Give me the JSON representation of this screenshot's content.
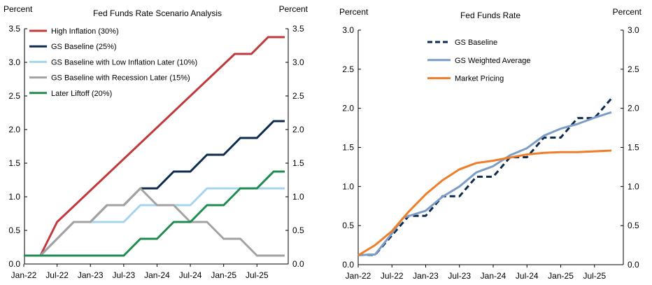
{
  "chart_data": [
    {
      "type": "line",
      "title": "Fed Funds Rate Scenario Analysis",
      "ylabel_left": "Percent",
      "ylabel_right": "Percent",
      "ylim": [
        0,
        3.5
      ],
      "yticks": [
        "0.0",
        "0.5",
        "1.0",
        "1.5",
        "2.0",
        "2.5",
        "3.0",
        "3.5"
      ],
      "xticks": [
        "Jan-22",
        "Jul-22",
        "Jan-23",
        "Jul-23",
        "Jan-24",
        "Jul-24",
        "Jan-25",
        "Jul-25"
      ],
      "x_month_range": [
        0,
        47
      ],
      "series": [
        {
          "name": "High Inflation (30%)",
          "color": "#c0393b",
          "dash": "solid",
          "points": [
            [
              0,
              0.125
            ],
            [
              3,
              0.125
            ],
            [
              6,
              0.625
            ],
            [
              38,
              3.125
            ],
            [
              41,
              3.125
            ],
            [
              44,
              3.375
            ],
            [
              47,
              3.375
            ]
          ]
        },
        {
          "name": "GS Baseline (25%)",
          "color": "#0d2b4e",
          "dash": "solid",
          "points": [
            [
              0,
              0.125
            ],
            [
              3,
              0.125
            ],
            [
              6,
              0.375
            ],
            [
              9,
              0.625
            ],
            [
              12,
              0.625
            ],
            [
              15,
              0.875
            ],
            [
              18,
              0.875
            ],
            [
              21,
              1.125
            ],
            [
              24,
              1.125
            ],
            [
              27,
              1.375
            ],
            [
              30,
              1.375
            ],
            [
              33,
              1.625
            ],
            [
              36,
              1.625
            ],
            [
              39,
              1.875
            ],
            [
              42,
              1.875
            ],
            [
              45,
              2.125
            ],
            [
              47,
              2.125
            ]
          ]
        },
        {
          "name": "GS Baseline with Low Inflation Later (10%)",
          "color": "#a6d4ee",
          "dash": "solid",
          "points": [
            [
              0,
              0.125
            ],
            [
              3,
              0.125
            ],
            [
              6,
              0.375
            ],
            [
              9,
              0.625
            ],
            [
              18,
              0.625
            ],
            [
              21,
              0.875
            ],
            [
              30,
              0.875
            ],
            [
              33,
              1.125
            ],
            [
              47,
              1.125
            ]
          ]
        },
        {
          "name": "GS Baseline with Recession Later (15%)",
          "color": "#a2a2a2",
          "dash": "solid",
          "points": [
            [
              0,
              0.125
            ],
            [
              3,
              0.125
            ],
            [
              6,
              0.375
            ],
            [
              9,
              0.625
            ],
            [
              12,
              0.625
            ],
            [
              15,
              0.875
            ],
            [
              18,
              0.875
            ],
            [
              21,
              1.125
            ],
            [
              24,
              0.875
            ],
            [
              27,
              0.875
            ],
            [
              30,
              0.625
            ],
            [
              33,
              0.625
            ],
            [
              36,
              0.375
            ],
            [
              39,
              0.375
            ],
            [
              42,
              0.125
            ],
            [
              47,
              0.125
            ]
          ]
        },
        {
          "name": "Later Liftoff (20%)",
          "color": "#1e8c4e",
          "dash": "solid",
          "points": [
            [
              0,
              0.125
            ],
            [
              18,
              0.125
            ],
            [
              21,
              0.375
            ],
            [
              24,
              0.375
            ],
            [
              27,
              0.625
            ],
            [
              30,
              0.625
            ],
            [
              33,
              0.875
            ],
            [
              36,
              0.875
            ],
            [
              39,
              1.125
            ],
            [
              42,
              1.125
            ],
            [
              45,
              1.375
            ],
            [
              47,
              1.375
            ]
          ]
        }
      ]
    },
    {
      "type": "line",
      "title": "Fed Funds Rate",
      "ylabel_left": "Percent",
      "ylabel_right": "Percent",
      "ylim": [
        0,
        3.0
      ],
      "yticks": [
        "0.0",
        "0.5",
        "1.0",
        "1.5",
        "2.0",
        "2.5",
        "3.0"
      ],
      "xticks": [
        "Jan-22",
        "Jul-22",
        "Jan-23",
        "Jul-23",
        "Jan-24",
        "Jul-24",
        "Jan-25",
        "Jul-25"
      ],
      "x_month_range": [
        0,
        47
      ],
      "series": [
        {
          "name": "GS Baseline",
          "color": "#0d2b4e",
          "dash": "dashed",
          "points": [
            [
              0,
              0.125
            ],
            [
              3,
              0.125
            ],
            [
              6,
              0.375
            ],
            [
              9,
              0.625
            ],
            [
              12,
              0.625
            ],
            [
              15,
              0.875
            ],
            [
              18,
              0.875
            ],
            [
              21,
              1.125
            ],
            [
              24,
              1.125
            ],
            [
              27,
              1.375
            ],
            [
              30,
              1.375
            ],
            [
              33,
              1.625
            ],
            [
              36,
              1.625
            ],
            [
              39,
              1.875
            ],
            [
              42,
              1.875
            ],
            [
              45,
              2.125
            ]
          ]
        },
        {
          "name": "GS Weighted Average",
          "color": "#7c9dc8",
          "dash": "solid",
          "points": [
            [
              0,
              0.12
            ],
            [
              2,
              0.13
            ],
            [
              3,
              0.13
            ],
            [
              6,
              0.4
            ],
            [
              8,
              0.6
            ],
            [
              12,
              0.69
            ],
            [
              15,
              0.87
            ],
            [
              18,
              1.0
            ],
            [
              21,
              1.18
            ],
            [
              24,
              1.26
            ],
            [
              27,
              1.4
            ],
            [
              30,
              1.49
            ],
            [
              33,
              1.65
            ],
            [
              36,
              1.74
            ],
            [
              39,
              1.8
            ],
            [
              42,
              1.88
            ],
            [
              45,
              1.95
            ]
          ]
        },
        {
          "name": "Market Pricing",
          "color": "#f07d2a",
          "dash": "solid",
          "points": [
            [
              0,
              0.12
            ],
            [
              3,
              0.25
            ],
            [
              6,
              0.43
            ],
            [
              9,
              0.68
            ],
            [
              12,
              0.9
            ],
            [
              15,
              1.08
            ],
            [
              18,
              1.22
            ],
            [
              21,
              1.3
            ],
            [
              24,
              1.33
            ],
            [
              27,
              1.37
            ],
            [
              30,
              1.41
            ],
            [
              33,
              1.43
            ],
            [
              36,
              1.44
            ],
            [
              39,
              1.44
            ],
            [
              42,
              1.45
            ],
            [
              45,
              1.46
            ]
          ]
        }
      ]
    }
  ]
}
